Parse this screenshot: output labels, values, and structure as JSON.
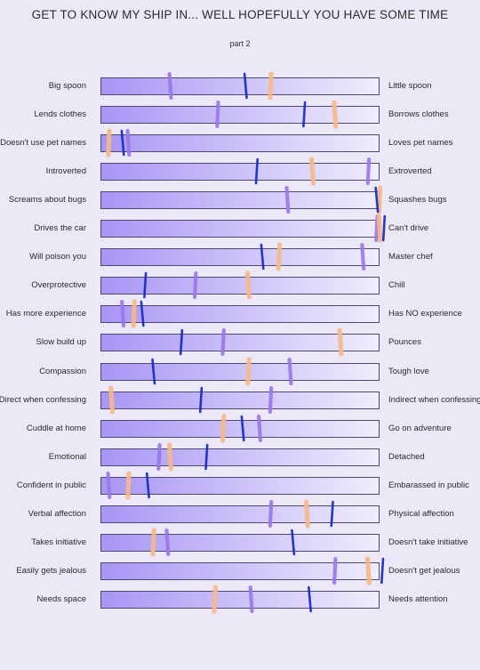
{
  "title": "GET TO KNOW MY SHIP IN... WELL HOPEFULLY YOU HAVE SOME TIME",
  "subtitle": "part 2",
  "colors": {
    "blue": "#1b2fc6",
    "purple": "#9a78e8",
    "orange": "#f7b98a"
  },
  "rows": [
    {
      "left": "Big spoon",
      "right": "Little spoon",
      "blue": 0.52,
      "purple": 0.25,
      "orange": 0.61
    },
    {
      "left": "Lends clothes",
      "right": "Borrows clothes",
      "blue": 0.73,
      "purple": 0.42,
      "orange": 0.84
    },
    {
      "left": "Doesn't use pet names",
      "right": "Loves pet names",
      "blue": 0.08,
      "purple": 0.1,
      "orange": 0.03
    },
    {
      "left": "Introverted",
      "right": "Extroverted",
      "blue": 0.56,
      "purple": 0.96,
      "orange": 0.76
    },
    {
      "left": "Screams about bugs",
      "right": "Squashes bugs",
      "blue": 0.99,
      "purple": 0.67,
      "orange": 1.0
    },
    {
      "left": "Drives the car",
      "right": "Can't drive",
      "blue": 1.02,
      "purple": 0.99,
      "orange": 1.0
    },
    {
      "left": "Will poison you",
      "right": "Master chef",
      "blue": 0.58,
      "purple": 0.94,
      "orange": 0.64
    },
    {
      "left": "Overprotective",
      "right": "Chill",
      "blue": 0.16,
      "purple": 0.34,
      "orange": 0.53
    },
    {
      "left": "Has more experience",
      "right": "Has NO experience",
      "blue": 0.15,
      "purple": 0.08,
      "orange": 0.12
    },
    {
      "left": "Slow build up",
      "right": "Pounces",
      "blue": 0.29,
      "purple": 0.44,
      "orange": 0.86
    },
    {
      "left": "Compassion",
      "right": "Tough love",
      "blue": 0.19,
      "purple": 0.68,
      "orange": 0.53
    },
    {
      "left": "Direct when confessing",
      "right": "Indirect when confessing",
      "blue": 0.36,
      "purple": 0.61,
      "orange": 0.04
    },
    {
      "left": "Cuddle at home",
      "right": "Go on  adventure",
      "blue": 0.51,
      "purple": 0.57,
      "orange": 0.44
    },
    {
      "left": "Emotional",
      "right": "Detached",
      "blue": 0.38,
      "purple": 0.21,
      "orange": 0.25
    },
    {
      "left": "Confident in public",
      "right": "Embarassed in public",
      "blue": 0.17,
      "purple": 0.03,
      "orange": 0.1
    },
    {
      "left": "Verbal affection",
      "right": "Physical affection",
      "blue": 0.83,
      "purple": 0.61,
      "orange": 0.74
    },
    {
      "left": "Takes initiative",
      "right": "Doesn't take initiative",
      "blue": 0.69,
      "purple": 0.24,
      "orange": 0.19
    },
    {
      "left": "Easily gets jealous",
      "right": "Doesn't get jealous",
      "blue": 1.01,
      "purple": 0.84,
      "orange": 0.96
    },
    {
      "left": "Needs space",
      "right": "Needs attention",
      "blue": 0.75,
      "purple": 0.54,
      "orange": 0.41
    }
  ]
}
